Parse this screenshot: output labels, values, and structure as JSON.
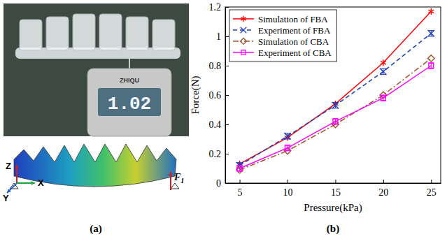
{
  "chart_data": {
    "type": "line",
    "title": "(b)",
    "xlabel": "Pressure(kPa)",
    "ylabel": "Force(N)",
    "x": [
      5,
      10,
      15,
      20,
      25
    ],
    "xlim": [
      3.5,
      26
    ],
    "xticks": [
      5,
      10,
      15,
      20,
      25
    ],
    "ylim": [
      0,
      1.2
    ],
    "yticks": [
      0,
      0.2,
      0.4,
      0.6,
      0.8,
      1,
      1.2
    ],
    "grid": false,
    "legend": "upper left",
    "series": [
      {
        "name": "Simulation of FBA",
        "color": "#ff0000",
        "marker": "asterisk",
        "line_style": "solid",
        "values": [
          0.13,
          0.31,
          0.54,
          0.82,
          1.17
        ]
      },
      {
        "name": "Experiment of FBA",
        "color": "#1f3fbf",
        "marker": "x",
        "line_style": "dashed",
        "values": [
          0.12,
          0.32,
          0.53,
          0.76,
          1.02
        ],
        "errors": [
          0.02,
          0.02,
          0.02,
          0.02,
          0.02
        ]
      },
      {
        "name": "Simulation of CBA",
        "color": "#a0522d",
        "marker": "diamond",
        "line_style": "dashdot",
        "values": [
          0.09,
          0.22,
          0.4,
          0.6,
          0.85
        ]
      },
      {
        "name": "Experiment of CBA",
        "color": "#ff00ff",
        "marker": "square",
        "line_style": "solid",
        "values": [
          0.1,
          0.24,
          0.42,
          0.58,
          0.8
        ],
        "errors": [
          0.02,
          0.02,
          0.02,
          0.02,
          0.02
        ]
      }
    ]
  },
  "panel_a": {
    "label": "(a)",
    "display": "1.02",
    "brand": "ZHIQU",
    "axes": [
      "X",
      "Y",
      "Z"
    ],
    "force": "F1"
  }
}
